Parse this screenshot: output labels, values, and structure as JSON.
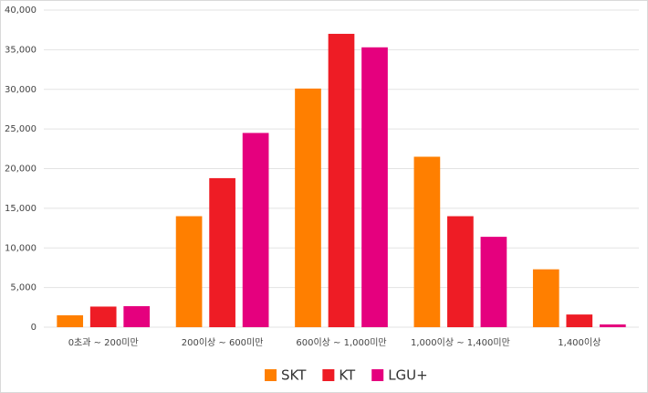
{
  "chart_data": {
    "type": "bar",
    "categories": [
      "0초과 ~ 200미만",
      "200이상 ~ 600미만",
      "600이상 ~ 1,000미만",
      "1,000이상 ~ 1,400미만",
      "1,400이상"
    ],
    "series": [
      {
        "name": "SKT",
        "color": "#ff7f00",
        "values": [
          1500,
          14000,
          30100,
          21500,
          7300
        ]
      },
      {
        "name": "KT",
        "color": "#ee1c25",
        "values": [
          2600,
          18800,
          37000,
          14000,
          1600
        ]
      },
      {
        "name": "LGU+",
        "color": "#e5007e",
        "values": [
          2650,
          24500,
          35300,
          11400,
          350
        ]
      }
    ],
    "ylim": [
      0,
      40000
    ],
    "yticks": [
      0,
      {
        "value": 5000,
        "label": "5,000"
      },
      {
        "value": 10000,
        "label": "10,000"
      },
      {
        "value": 15000,
        "label": "15,000"
      },
      {
        "value": 20000,
        "label": "20,000"
      },
      {
        "value": 25000,
        "label": "25,000"
      },
      {
        "value": 30000,
        "label": "30,000"
      },
      {
        "value": 35000,
        "label": "35,000"
      },
      {
        "value": 40000,
        "label": "40,000"
      }
    ],
    "grid": true
  }
}
